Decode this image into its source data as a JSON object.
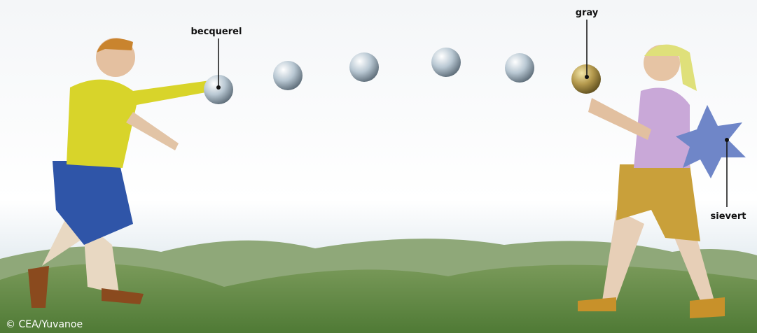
{
  "annotations": [
    {
      "label": "becquerel"
    },
    {
      "label": "gray"
    },
    {
      "label": "sievert"
    }
  ],
  "credit": "© CEA/Yuvanoe"
}
